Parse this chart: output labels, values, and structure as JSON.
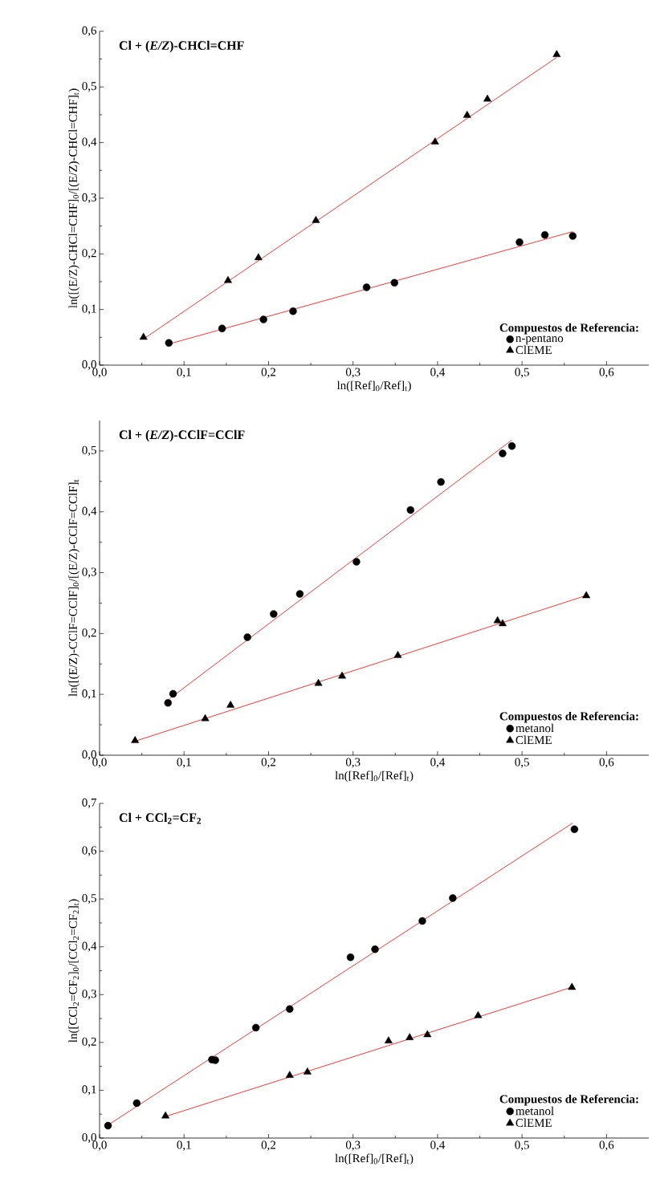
{
  "chart_data": [
    {
      "type": "scatter",
      "title": "Cl + (*E/Z*)-CHCl=CHF",
      "xlabel": "ln([Ref]$_{0}$/Ref]$_{t}$)",
      "ylabel": "ln([(E/Z)-CHCl=CHF]$_{0}$/[(E/Z)-CHCl=CHF]$_{t}$)",
      "legend_title": "Compuestos de Referencia:",
      "legend": "bottom right",
      "xlim": [
        0,
        0.65
      ],
      "ylim": [
        0,
        0.6
      ],
      "xticks": [
        {
          "value": 0,
          "label": "0,0"
        },
        {
          "value": 0.1,
          "label": "0,1"
        },
        {
          "value": 0.2,
          "label": "0,2"
        },
        {
          "value": 0.3,
          "label": "0,3"
        },
        {
          "value": 0.4,
          "label": "0,4"
        },
        {
          "value": 0.5,
          "label": "0,5"
        },
        {
          "value": 0.6,
          "label": "0,6"
        }
      ],
      "yticks": [
        {
          "value": 0,
          "label": "0,0"
        },
        {
          "value": 0.1,
          "label": "0,1"
        },
        {
          "value": 0.2,
          "label": "0,2"
        },
        {
          "value": 0.3,
          "label": "0,3"
        },
        {
          "value": 0.4,
          "label": "0,4"
        },
        {
          "value": 0.5,
          "label": "0,5"
        },
        {
          "value": 0.6,
          "label": "0,6"
        }
      ],
      "series": [
        {
          "name": "n-pentano",
          "marker": "circle",
          "color": "#000000",
          "x": [
            0.082,
            0.145,
            0.194,
            0.229,
            0.316,
            0.349,
            0.497,
            0.527,
            0.56
          ],
          "values": [
            0.04,
            0.066,
            0.082,
            0.097,
            0.14,
            0.148,
            0.221,
            0.234,
            0.232
          ]
        },
        {
          "name": "ClEME",
          "marker": "triangle",
          "color": "#000000",
          "x": [
            0.052,
            0.152,
            0.188,
            0.256,
            0.397,
            0.435,
            0.459,
            0.541
          ],
          "values": [
            0.05,
            0.152,
            0.193,
            0.26,
            0.401,
            0.449,
            0.478,
            0.558
          ]
        },
        {
          "type": "line",
          "color": "#ff0000",
          "x": [
            0.082,
            0.56
          ],
          "values": [
            0.038,
            0.24
          ]
        },
        {
          "type": "line",
          "color": "#ff0000",
          "x": [
            0.052,
            0.541
          ],
          "values": [
            0.047,
            0.553
          ]
        }
      ]
    },
    {
      "type": "scatter",
      "title": "Cl + (*E/Z*)-CClF=CClF",
      "xlabel": "ln([Ref]$_{0}$/[Ref]$_{t}$)",
      "ylabel": "ln([(E/Z)-CClF=CClF]$_{0}$/[(E/Z)-CClF=CClF]$_{t}$",
      "legend_title": "Compuestos de Referencia:",
      "legend": "bottom right",
      "xlim": [
        0,
        0.65
      ],
      "ylim": [
        0,
        0.55
      ],
      "xticks": [
        {
          "value": 0,
          "label": "0,0"
        },
        {
          "value": 0.1,
          "label": "0,1"
        },
        {
          "value": 0.2,
          "label": "0,2"
        },
        {
          "value": 0.3,
          "label": "0,3"
        },
        {
          "value": 0.4,
          "label": "0,4"
        },
        {
          "value": 0.5,
          "label": "0,5"
        },
        {
          "value": 0.6,
          "label": "0,6"
        }
      ],
      "yticks": [
        {
          "value": 0,
          "label": "0,0"
        },
        {
          "value": 0.1,
          "label": "0,1"
        },
        {
          "value": 0.2,
          "label": "0,2"
        },
        {
          "value": 0.3,
          "label": "0,3"
        },
        {
          "value": 0.4,
          "label": "0,4"
        },
        {
          "value": 0.5,
          "label": "0,5"
        }
      ],
      "series": [
        {
          "name": "metanol",
          "marker": "circle",
          "color": "#000000",
          "x": [
            0.081,
            0.087,
            0.175,
            0.206,
            0.237,
            0.304,
            0.368,
            0.404,
            0.477,
            0.488
          ],
          "values": [
            0.086,
            0.101,
            0.194,
            0.232,
            0.265,
            0.318,
            0.403,
            0.449,
            0.496,
            0.508
          ]
        },
        {
          "name": "ClEME",
          "marker": "triangle",
          "color": "#000000",
          "x": [
            0.042,
            0.125,
            0.155,
            0.259,
            0.287,
            0.353,
            0.471,
            0.477,
            0.576
          ],
          "values": [
            0.024,
            0.06,
            0.082,
            0.118,
            0.13,
            0.164,
            0.221,
            0.216,
            0.262
          ]
        },
        {
          "type": "line",
          "color": "#ff0000",
          "x": [
            0.083,
            0.488
          ],
          "values": [
            0.093,
            0.518
          ]
        },
        {
          "type": "line",
          "color": "#ff0000",
          "x": [
            0.042,
            0.575
          ],
          "values": [
            0.023,
            0.262
          ]
        }
      ]
    },
    {
      "type": "scatter",
      "title": "Cl + CCl$_{2}$=CF$_{2}$",
      "xlabel": "ln([Ref]$_{0}$/[Ref]$_{t}$)",
      "ylabel": "ln([CCl$_{2}$=CF$_{2}$]$_{0}$/[CCl$_{2}$=CF$_{2}$]$_{t}$)",
      "legend_title": "Compuestos de Referencia:",
      "legend": "bottom right",
      "xlim": [
        0,
        0.65
      ],
      "ylim": [
        0,
        0.7
      ],
      "xticks": [
        {
          "value": 0,
          "label": "0,0"
        },
        {
          "value": 0.1,
          "label": "0,1"
        },
        {
          "value": 0.2,
          "label": "0,2"
        },
        {
          "value": 0.3,
          "label": "0,3"
        },
        {
          "value": 0.4,
          "label": "0,4"
        },
        {
          "value": 0.5,
          "label": "0,5"
        },
        {
          "value": 0.6,
          "label": "0,6"
        }
      ],
      "yticks": [
        {
          "value": 0,
          "label": "0,0"
        },
        {
          "value": 0.1,
          "label": "0,1"
        },
        {
          "value": 0.2,
          "label": "0,2"
        },
        {
          "value": 0.3,
          "label": "0,3"
        },
        {
          "value": 0.4,
          "label": "0,4"
        },
        {
          "value": 0.5,
          "label": "0,5"
        },
        {
          "value": 0.6,
          "label": "0,6"
        },
        {
          "value": 0.7,
          "label": "0,7"
        }
      ],
      "series": [
        {
          "name": "metanol",
          "marker": "circle",
          "color": "#000000",
          "x": [
            0.01,
            0.044,
            0.133,
            0.137,
            0.185,
            0.225,
            0.297,
            0.326,
            0.382,
            0.418,
            0.562
          ],
          "values": [
            0.026,
            0.073,
            0.164,
            0.163,
            0.231,
            0.27,
            0.378,
            0.395,
            0.454,
            0.502,
            0.646
          ]
        },
        {
          "name": "ClEME",
          "marker": "triangle",
          "color": "#000000",
          "x": [
            0.078,
            0.225,
            0.246,
            0.342,
            0.367,
            0.388,
            0.448,
            0.559
          ],
          "values": [
            0.046,
            0.131,
            0.138,
            0.203,
            0.21,
            0.216,
            0.256,
            0.315
          ]
        },
        {
          "type": "line",
          "color": "#ff0000",
          "x": [
            0.009,
            0.56
          ],
          "values": [
            0.026,
            0.659
          ]
        },
        {
          "type": "line",
          "color": "#ff0000",
          "x": [
            0.078,
            0.558
          ],
          "values": [
            0.045,
            0.315
          ]
        }
      ]
    }
  ]
}
